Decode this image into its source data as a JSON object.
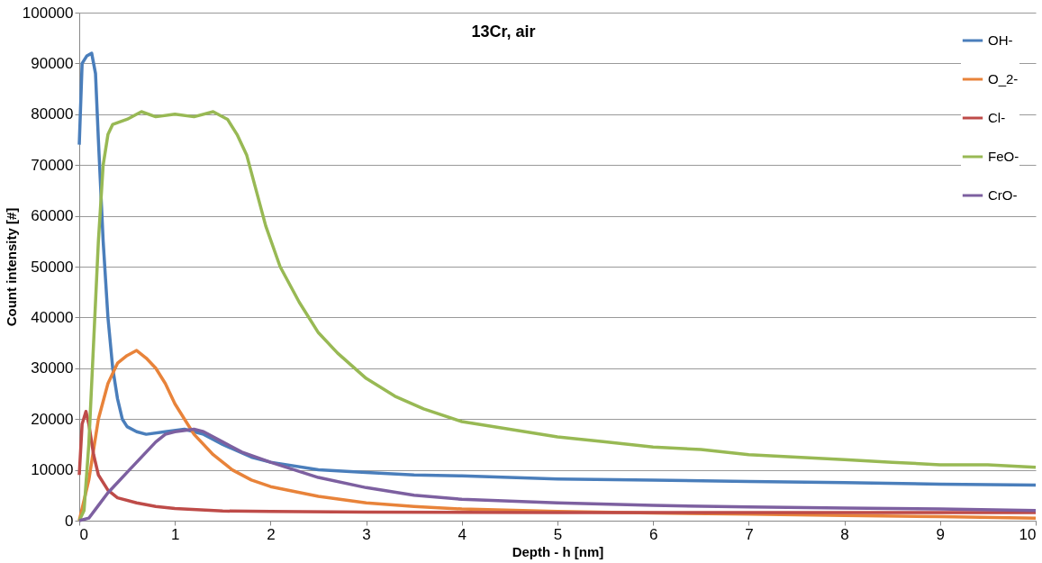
{
  "chart_data": {
    "type": "line",
    "title": "13Cr, air",
    "xlabel": "Depth - h [nm]",
    "ylabel": "Count intensity [#]",
    "xlim": [
      0,
      10
    ],
    "xticks": [
      0,
      1,
      2,
      3,
      4,
      5,
      6,
      7,
      8,
      9,
      10
    ],
    "ylim": [
      0,
      100000
    ],
    "yticks": [
      0,
      10000,
      20000,
      30000,
      40000,
      50000,
      60000,
      70000,
      80000,
      90000,
      100000
    ],
    "grid": "y",
    "legend": "top right",
    "marker": "none",
    "line_style": "solid",
    "series": [
      {
        "name": "OH-",
        "color": "#4a7ebb",
        "x": [
          0,
          0.03,
          0.08,
          0.13,
          0.17,
          0.2,
          0.25,
          0.3,
          0.35,
          0.4,
          0.45,
          0.5,
          0.6,
          0.7,
          0.9,
          1.1,
          1.3,
          1.5,
          1.8,
          2,
          2.5,
          3,
          3.5,
          4,
          5,
          6,
          7,
          8,
          9,
          10
        ],
        "values": [
          74000,
          90000,
          91500,
          92000,
          88000,
          75000,
          55000,
          40000,
          30000,
          24000,
          20000,
          18500,
          17500,
          17000,
          17500,
          18000,
          17000,
          15000,
          12500,
          11500,
          10000,
          9500,
          9000,
          8800,
          8200,
          8000,
          7700,
          7500,
          7200,
          7000
        ]
      },
      {
        "name": "O_2-",
        "color": "#e8833a",
        "x": [
          0,
          0.1,
          0.2,
          0.3,
          0.4,
          0.5,
          0.6,
          0.7,
          0.8,
          0.9,
          1,
          1.1,
          1.2,
          1.4,
          1.6,
          1.8,
          2,
          2.5,
          3,
          3.5,
          4,
          5,
          6,
          7,
          8,
          9,
          10
        ],
        "values": [
          0,
          8000,
          20000,
          27000,
          31000,
          32500,
          33500,
          32000,
          30000,
          27000,
          23000,
          20000,
          17000,
          13000,
          10000,
          8000,
          6700,
          4800,
          3500,
          2800,
          2300,
          1800,
          1500,
          1300,
          1000,
          800,
          500
        ]
      },
      {
        "name": "Cl-",
        "color": "#be4b48",
        "x": [
          0,
          0.03,
          0.07,
          0.1,
          0.15,
          0.2,
          0.3,
          0.4,
          0.6,
          0.8,
          1,
          1.5,
          2,
          3,
          5,
          7,
          10
        ],
        "values": [
          9000,
          19000,
          21500,
          19000,
          13000,
          9000,
          6000,
          4500,
          3500,
          2800,
          2400,
          1900,
          1800,
          1700,
          1600,
          1600,
          1600
        ]
      },
      {
        "name": "FeO-",
        "color": "#98b954",
        "x": [
          0,
          0.05,
          0.1,
          0.15,
          0.2,
          0.25,
          0.3,
          0.35,
          0.5,
          0.65,
          0.8,
          1,
          1.2,
          1.4,
          1.55,
          1.65,
          1.75,
          1.85,
          1.95,
          2.1,
          2.3,
          2.5,
          2.7,
          3,
          3.3,
          3.6,
          4,
          4.5,
          5,
          5.5,
          6,
          6.5,
          7,
          7.5,
          8,
          8.5,
          9,
          9.5,
          10
        ],
        "values": [
          0,
          2000,
          15000,
          35000,
          55000,
          70000,
          76000,
          78000,
          79000,
          80500,
          79500,
          80000,
          79500,
          80500,
          79000,
          76000,
          72000,
          65000,
          58000,
          50000,
          43000,
          37000,
          33000,
          28000,
          24500,
          22000,
          19500,
          18000,
          16500,
          15500,
          14500,
          14000,
          13000,
          12500,
          12000,
          11500,
          11000,
          11000,
          10500
        ]
      },
      {
        "name": "CrO-",
        "color": "#7d60a0",
        "x": [
          0,
          0.1,
          0.2,
          0.3,
          0.4,
          0.5,
          0.6,
          0.7,
          0.8,
          0.9,
          1,
          1.2,
          1.3,
          1.5,
          1.7,
          2,
          2.5,
          3,
          3.5,
          4,
          5,
          6,
          7,
          8,
          9,
          10
        ],
        "values": [
          0,
          500,
          3000,
          5500,
          7500,
          9500,
          11500,
          13500,
          15500,
          17000,
          17500,
          18000,
          17500,
          15500,
          13500,
          11500,
          8500,
          6500,
          5000,
          4200,
          3500,
          3000,
          2700,
          2500,
          2300,
          2000
        ]
      }
    ]
  }
}
